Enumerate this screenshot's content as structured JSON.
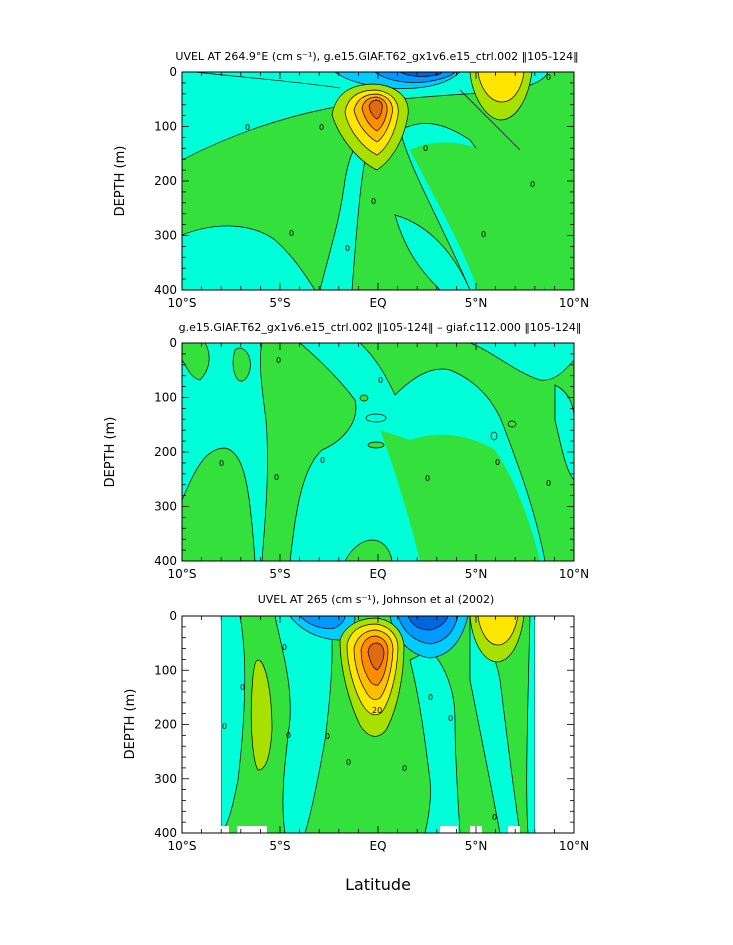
{
  "chart_data": [
    {
      "type": "contour",
      "title": "UVEL AT 264.9°E (cm s⁻¹), g.e15.GIAF.T62_gx1v6.e15_ctrl.002 ‖105-124‖",
      "xlabel": "",
      "ylabel": "DEPTH (m)",
      "xlim": [
        -10,
        10
      ],
      "ylim": [
        400,
        0
      ],
      "xticks": [
        -10,
        -5,
        0,
        5,
        10
      ],
      "xtick_labels": [
        "10°S",
        "5°S",
        "EQ",
        "5°N",
        "10°N"
      ],
      "yticks": [
        0,
        100,
        200,
        300,
        400
      ],
      "ytick_labels": [
        "0",
        "100",
        "200",
        "300",
        "400"
      ],
      "contour_labels": [
        "0",
        "0",
        "0",
        "0",
        "0",
        "0",
        "0",
        "0",
        "0"
      ],
      "features": [
        {
          "kind": "max",
          "x": 0.0,
          "y": 75,
          "level": "orange",
          "desc": "undercurrent core"
        },
        {
          "kind": "max",
          "x": 6.0,
          "y": 20,
          "level": "yellow"
        },
        {
          "kind": "min",
          "x": 2.5,
          "y": 20,
          "level": "blue"
        }
      ]
    },
    {
      "type": "contour",
      "title": "g.e15.GIAF.T62_gx1v6.e15_ctrl.002 ‖105-124‖ – giaf.c112.000 ‖105-124‖",
      "xlabel": "",
      "ylabel": "DEPTH (m)",
      "xlim": [
        -10,
        10
      ],
      "ylim": [
        400,
        0
      ],
      "xticks": [
        -10,
        -5,
        0,
        5,
        10
      ],
      "xtick_labels": [
        "10°S",
        "5°S",
        "EQ",
        "5°N",
        "10°N"
      ],
      "yticks": [
        0,
        100,
        200,
        300,
        400
      ],
      "ytick_labels": [
        "0",
        "100",
        "200",
        "300",
        "400"
      ],
      "contour_labels": [
        "0",
        "0",
        "0",
        "0",
        "0",
        "0",
        "0",
        "0"
      ]
    },
    {
      "type": "contour",
      "title": "UVEL AT 265 (cm s⁻¹), Johnson et al (2002)",
      "xlabel": "Latitude",
      "ylabel": "DEPTH (m)",
      "xlim": [
        -10,
        10
      ],
      "ylim": [
        400,
        0
      ],
      "xticks": [
        -10,
        -5,
        0,
        5,
        10
      ],
      "xtick_labels": [
        "10°S",
        "5°S",
        "EQ",
        "5°N",
        "10°N"
      ],
      "yticks": [
        0,
        100,
        200,
        300,
        400
      ],
      "ytick_labels": [
        "0",
        "100",
        "200",
        "300",
        "400"
      ],
      "contour_labels": [
        "0",
        "0",
        "0",
        "0",
        "0",
        "0",
        "0",
        "0",
        "0",
        "0",
        "20"
      ],
      "data_extent_x": [
        -8,
        8
      ],
      "features": [
        {
          "kind": "max",
          "x": 0.0,
          "y": 65,
          "level": "orange",
          "desc": "undercurrent core"
        },
        {
          "kind": "max",
          "x": 5.5,
          "y": 20,
          "level": "yellow"
        }
      ]
    }
  ],
  "colors": {
    "cyan": "#00ffd8",
    "green": "#33e03c",
    "yellow_green": "#a8e000",
    "yellow": "#ffe600",
    "gold": "#ffbf00",
    "orange": "#ff8c00",
    "dark_orange": "#e06a10",
    "light_blue": "#00ccff",
    "blue": "#0099ff",
    "dark_blue": "#0066e0"
  }
}
